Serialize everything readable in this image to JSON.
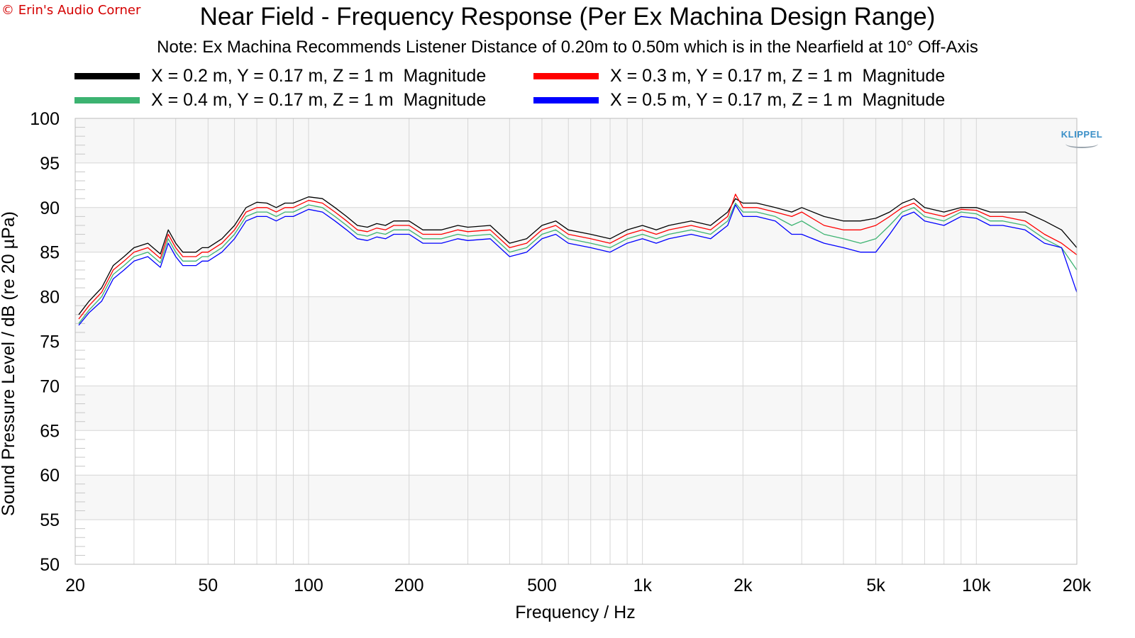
{
  "watermark": "© Erin's Audio Corner",
  "logo": "KLIPPEL",
  "colors": {
    "background": "#ffffff",
    "plot_band_light": "#f7f7f7",
    "grid": "#d6d6d6",
    "series": [
      "#000000",
      "#ff0000",
      "#3cb371",
      "#0000ff"
    ]
  },
  "chart_data": {
    "type": "line",
    "title": "Near Field - Frequency Response (Per Ex Machina Design Range)",
    "subtitle": "Note: Ex Machina Recommends Listener Distance of 0.20m to 0.50m which is in the Nearfield at 10° Off-Axis",
    "xlabel": "Frequency / Hz",
    "ylabel": "Sound Pressure Level / dB (re 20 µPa)",
    "xscale": "log",
    "xlim": [
      20,
      20000
    ],
    "ylim": [
      50,
      100
    ],
    "grid": true,
    "legend_position": "top",
    "xticks": [
      {
        "value": 20,
        "label": "20"
      },
      {
        "value": 50,
        "label": "50"
      },
      {
        "value": 100,
        "label": "100"
      },
      {
        "value": 200,
        "label": "200"
      },
      {
        "value": 500,
        "label": "500"
      },
      {
        "value": 1000,
        "label": "1k"
      },
      {
        "value": 2000,
        "label": "2k"
      },
      {
        "value": 5000,
        "label": "5k"
      },
      {
        "value": 10000,
        "label": "10k"
      },
      {
        "value": 20000,
        "label": "20k"
      }
    ],
    "yticks": [
      {
        "value": 100,
        "label": "100"
      },
      {
        "value": 95,
        "label": "95"
      },
      {
        "value": 90,
        "label": "90"
      },
      {
        "value": 85,
        "label": "85"
      },
      {
        "value": 80,
        "label": "80"
      },
      {
        "value": 75,
        "label": "75"
      },
      {
        "value": 70,
        "label": "70"
      },
      {
        "value": 65,
        "label": "65"
      },
      {
        "value": 60,
        "label": "60"
      },
      {
        "value": 55,
        "label": "55"
      },
      {
        "value": 50,
        "label": "50"
      }
    ],
    "x": [
      20.5,
      22,
      24,
      26,
      28,
      30,
      33,
      36,
      38,
      40,
      42,
      44,
      46,
      48,
      50,
      55,
      60,
      65,
      70,
      75,
      80,
      85,
      90,
      100,
      110,
      120,
      130,
      140,
      150,
      160,
      170,
      180,
      200,
      220,
      250,
      280,
      300,
      350,
      400,
      450,
      500,
      550,
      600,
      700,
      800,
      900,
      1000,
      1100,
      1200,
      1400,
      1600,
      1800,
      1900,
      2000,
      2200,
      2500,
      2800,
      3000,
      3500,
      4000,
      4500,
      5000,
      5500,
      6000,
      6500,
      7000,
      8000,
      9000,
      10000,
      11000,
      12000,
      14000,
      16000,
      18000,
      20000
    ],
    "series": [
      {
        "name": "X = 0.2 m, Y = 0.17 m, Z = 1 m  Magnitude",
        "values": [
          78.0,
          79.5,
          81.0,
          83.5,
          84.5,
          85.5,
          86.0,
          84.8,
          87.5,
          86.0,
          85.0,
          85.0,
          85.0,
          85.5,
          85.5,
          86.5,
          88.0,
          90.0,
          90.6,
          90.5,
          90.0,
          90.5,
          90.5,
          91.2,
          91.0,
          90.0,
          89.0,
          88.0,
          87.8,
          88.2,
          88.0,
          88.5,
          88.5,
          87.5,
          87.5,
          88.0,
          87.8,
          88.0,
          86.0,
          86.5,
          88.0,
          88.5,
          87.5,
          87.0,
          86.5,
          87.5,
          88.0,
          87.5,
          88.0,
          88.5,
          88.0,
          89.5,
          91.0,
          90.5,
          90.5,
          90.0,
          89.5,
          90.0,
          89.0,
          88.5,
          88.5,
          88.8,
          89.5,
          90.5,
          91.0,
          90.0,
          89.5,
          90.0,
          90.0,
          89.5,
          89.5,
          89.5,
          88.5,
          87.5,
          85.5
        ]
      },
      {
        "name": "X = 0.3 m, Y = 0.17 m, Z = 1 m  Magnitude",
        "values": [
          77.5,
          79.0,
          80.5,
          83.0,
          84.0,
          85.0,
          85.5,
          84.3,
          87.0,
          85.5,
          84.5,
          84.5,
          84.5,
          85.0,
          85.0,
          86.0,
          87.5,
          89.5,
          90.0,
          90.0,
          89.5,
          90.0,
          90.0,
          90.8,
          90.5,
          89.5,
          88.5,
          87.5,
          87.3,
          87.7,
          87.5,
          88.0,
          88.0,
          87.0,
          87.0,
          87.5,
          87.3,
          87.5,
          85.5,
          86.0,
          87.5,
          88.0,
          87.0,
          86.5,
          86.0,
          87.0,
          87.5,
          87.0,
          87.5,
          88.0,
          87.5,
          89.0,
          91.5,
          90.0,
          90.0,
          89.5,
          89.0,
          89.5,
          88.0,
          87.5,
          87.5,
          88.0,
          89.0,
          90.0,
          90.5,
          89.5,
          89.0,
          89.8,
          89.7,
          89.0,
          89.0,
          88.5,
          87.0,
          86.0,
          84.7
        ]
      },
      {
        "name": "X = 0.4 m, Y = 0.17 m, Z = 1 m  Magnitude",
        "values": [
          77.0,
          78.5,
          80.0,
          82.5,
          83.5,
          84.5,
          85.0,
          83.8,
          86.5,
          85.0,
          84.0,
          84.0,
          84.0,
          84.5,
          84.5,
          85.5,
          87.0,
          89.0,
          89.5,
          89.5,
          89.0,
          89.5,
          89.5,
          90.3,
          90.0,
          89.0,
          88.0,
          87.0,
          86.8,
          87.2,
          87.0,
          87.5,
          87.5,
          86.5,
          86.5,
          87.0,
          86.8,
          87.0,
          85.0,
          85.5,
          87.0,
          87.5,
          86.5,
          86.0,
          85.5,
          86.5,
          87.0,
          86.5,
          87.0,
          87.5,
          87.0,
          88.5,
          90.5,
          89.5,
          89.5,
          89.0,
          88.0,
          88.5,
          87.0,
          86.5,
          86.0,
          86.5,
          88.0,
          89.5,
          90.0,
          89.0,
          88.5,
          89.5,
          89.3,
          88.5,
          88.5,
          88.0,
          86.5,
          85.5,
          83.0
        ]
      },
      {
        "name": "X = 0.5 m, Y = 0.17 m, Z = 1 m  Magnitude",
        "values": [
          76.8,
          78.2,
          79.5,
          82.0,
          83.0,
          84.0,
          84.5,
          83.3,
          86.0,
          84.5,
          83.5,
          83.5,
          83.5,
          84.0,
          84.0,
          85.0,
          86.5,
          88.5,
          89.0,
          89.0,
          88.5,
          89.0,
          89.0,
          89.8,
          89.5,
          88.5,
          87.5,
          86.5,
          86.3,
          86.7,
          86.5,
          87.0,
          87.0,
          86.0,
          86.0,
          86.5,
          86.3,
          86.5,
          84.5,
          85.0,
          86.5,
          87.0,
          86.0,
          85.5,
          85.0,
          86.0,
          86.5,
          86.0,
          86.5,
          87.0,
          86.5,
          88.0,
          90.3,
          89.0,
          89.0,
          88.5,
          87.0,
          87.0,
          86.0,
          85.5,
          85.0,
          85.0,
          87.0,
          89.0,
          89.5,
          88.5,
          88.0,
          89.0,
          88.8,
          88.0,
          88.0,
          87.5,
          86.0,
          85.5,
          80.5
        ]
      }
    ]
  }
}
